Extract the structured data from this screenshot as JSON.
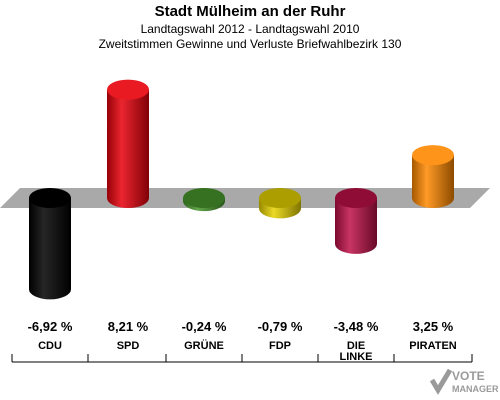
{
  "chart_data": {
    "type": "bar",
    "title": "Stadt Mülheim an der Ruhr",
    "subtitle": "Landtagswahl 2012 - Landtagswahl 2010",
    "subtitle2": "Zweitstimmen Gewinne und Verluste Briefwahlbezirk 130",
    "categories": [
      "CDU",
      "SPD",
      "GRÜNE",
      "FDP",
      "DIE LINKE",
      "PIRATEN"
    ],
    "values": [
      -6.92,
      8.21,
      -0.24,
      -0.79,
      -3.48,
      3.25
    ],
    "value_labels": [
      "-6,92 %",
      "8,21 %",
      "-0,24 %",
      "-0,79 %",
      "-3,48 %",
      "3,25 %"
    ],
    "colors": [
      "#000000",
      "#e8000b",
      "#46962b",
      "#e6d200",
      "#be1049",
      "#ff8800"
    ],
    "ylim": [
      -10,
      10
    ],
    "grid": false,
    "legend": "none"
  },
  "logo": {
    "line1": "VOTE",
    "line2": "MANAGER"
  }
}
